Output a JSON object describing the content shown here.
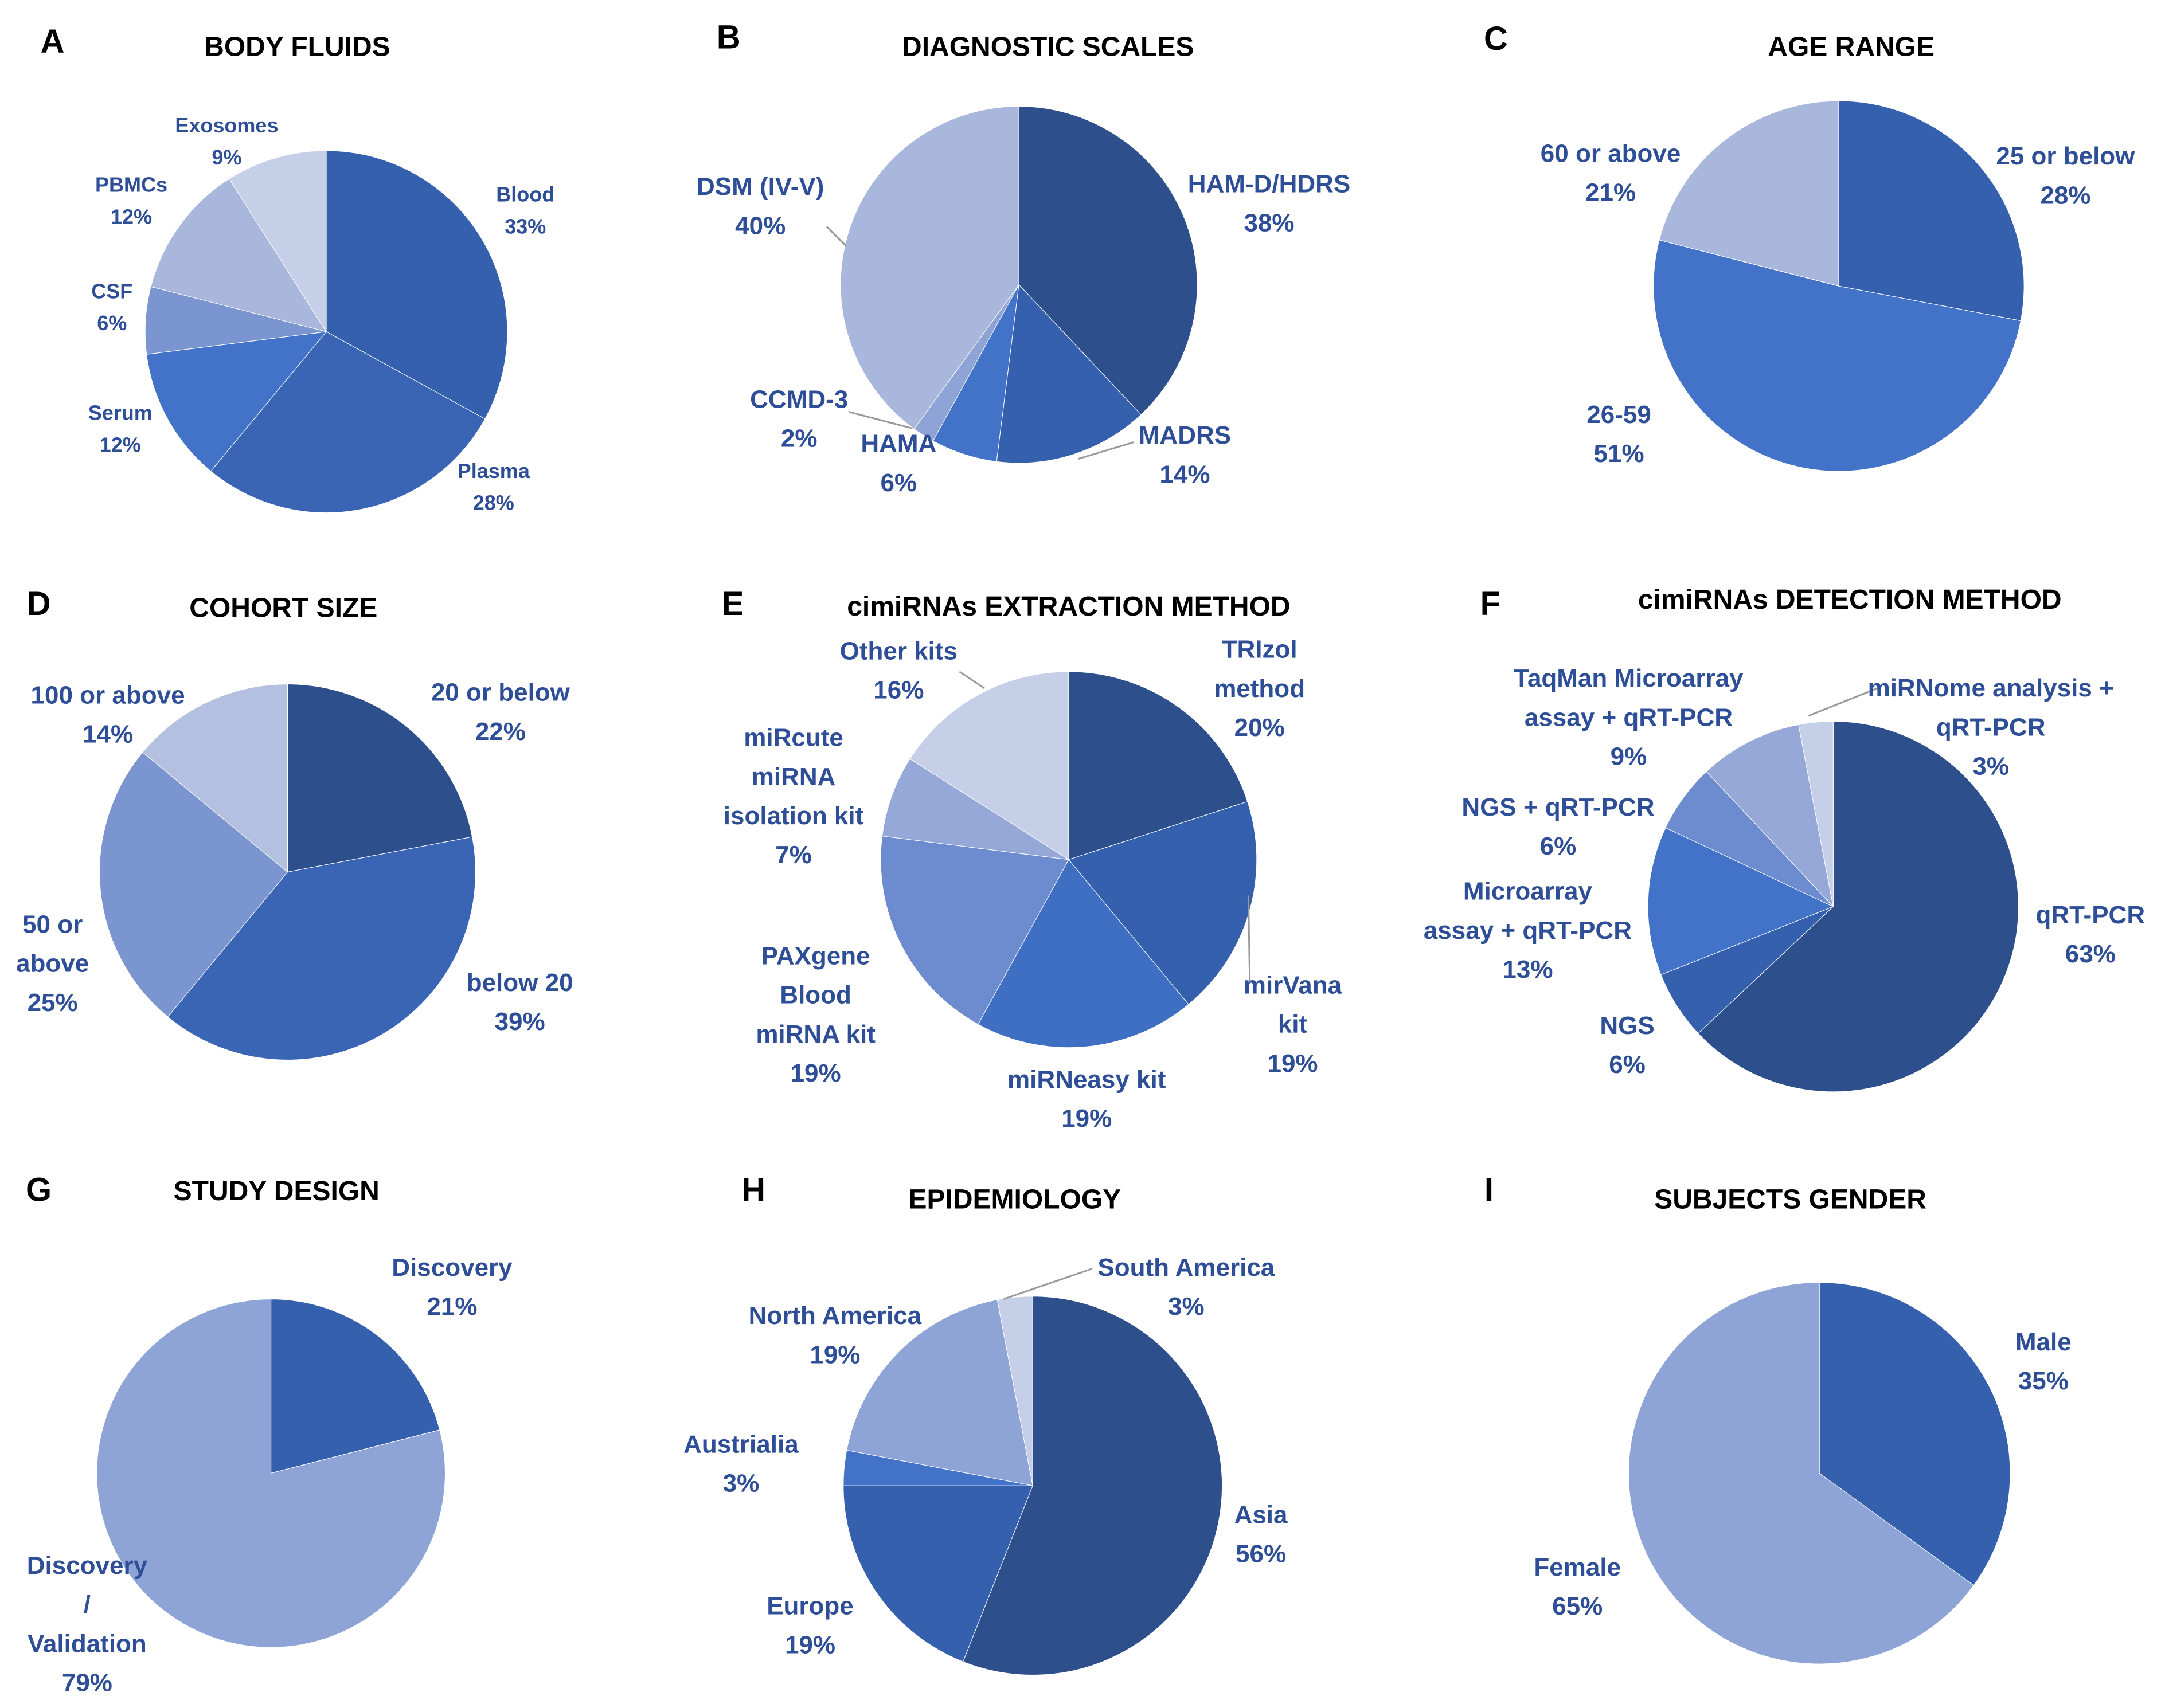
{
  "colors": {
    "c1": "#2d4f8c",
    "c2": "#3560ad",
    "c3": "#4373c8",
    "c4": "#6c8ccf",
    "c5": "#95a8d8",
    "c6": "#a9b7dc",
    "c7": "#c6cfe8",
    "label": "#2e4f97",
    "title": "#000000"
  },
  "chart_data": [
    {
      "id": "A",
      "type": "pie",
      "title": "BODY FLUIDS",
      "slices": [
        {
          "name": "Blood",
          "value": 33,
          "label": "33%",
          "color": "#3560ad"
        },
        {
          "name": "Plasma",
          "value": 28,
          "label": "28%",
          "color": "#3a65b5"
        },
        {
          "name": "Serum",
          "value": 12,
          "label": "12%",
          "color": "#4373c8"
        },
        {
          "name": "CSF",
          "value": 6,
          "label": "6%",
          "color": "#7a95d0"
        },
        {
          "name": "PBMCs",
          "value": 12,
          "label": "12%",
          "color": "#a9b7dc"
        },
        {
          "name": "Exosomes",
          "value": 9,
          "label": "9%",
          "color": "#c6cfe8"
        }
      ]
    },
    {
      "id": "B",
      "type": "pie",
      "title": "DIAGNOSTIC SCALES",
      "slices": [
        {
          "name": "HAM-D/HDRS",
          "value": 38,
          "label": "38%",
          "color": "#2d4f8c"
        },
        {
          "name": "MADRS",
          "value": 14,
          "label": "14%",
          "color": "#3560ad"
        },
        {
          "name": "HAMA",
          "value": 6,
          "label": "6%",
          "color": "#4373c8"
        },
        {
          "name": "CCMD-3",
          "value": 2,
          "label": "2%",
          "color": "#8ea3d6"
        },
        {
          "name": "DSM (IV-V)",
          "value": 40,
          "label": "40%",
          "color": "#a9b7dc"
        }
      ]
    },
    {
      "id": "C",
      "type": "pie",
      "title": "AGE RANGE",
      "slices": [
        {
          "name": "25 or below",
          "value": 28,
          "label": "28%",
          "color": "#3560ad"
        },
        {
          "name": "26-59",
          "value": 51,
          "label": "51%",
          "color": "#4373c8"
        },
        {
          "name": "60 or above",
          "value": 21,
          "label": "21%",
          "color": "#a9b7dc"
        }
      ]
    },
    {
      "id": "D",
      "type": "pie",
      "title": "COHORT SIZE",
      "slices": [
        {
          "name": "20 or below",
          "value": 22,
          "label": "22%",
          "color": "#2d4f8c"
        },
        {
          "name": "below 20",
          "value": 39,
          "label": "39%",
          "color": "#3a65b5"
        },
        {
          "name": "50 or above",
          "value": 25,
          "label": "25%",
          "color": "#7a95d0"
        },
        {
          "name": "100 or above",
          "value": 14,
          "label": "14%",
          "color": "#b3c0e0"
        }
      ]
    },
    {
      "id": "E",
      "type": "pie",
      "title": "cimiRNAs EXTRACTION METHOD",
      "slices": [
        {
          "name": "TRIzol method",
          "value": 20,
          "label": "20%",
          "color": "#2d4f8c"
        },
        {
          "name": "mirVana kit",
          "value": 19,
          "label": "19%",
          "color": "#3560ad"
        },
        {
          "name": "miRNeasy kit",
          "value": 19,
          "label": "19%",
          "color": "#3f6fc3"
        },
        {
          "name": "PAXgene Blood miRNA kit",
          "value": 19,
          "label": "19%",
          "color": "#6c8ccf"
        },
        {
          "name": "miRcute miRNA isolation kit",
          "value": 7,
          "label": "7%",
          "color": "#95a8d8"
        },
        {
          "name": "Other kits",
          "value": 16,
          "label": "16%",
          "color": "#c6cfe8"
        }
      ]
    },
    {
      "id": "F",
      "type": "pie",
      "title": "cimiRNAs DETECTION METHOD",
      "slices": [
        {
          "name": "qRT-PCR",
          "value": 63,
          "label": "63%",
          "color": "#2d4f8c"
        },
        {
          "name": "NGS",
          "value": 6,
          "label": "6%",
          "color": "#3560ad"
        },
        {
          "name": "Microarray assay + qRT-PCR",
          "value": 13,
          "label": "13%",
          "color": "#4373c8"
        },
        {
          "name": "NGS + qRT-PCR",
          "value": 6,
          "label": "6%",
          "color": "#6c8ccf"
        },
        {
          "name": "TaqMan Microarray assay + qRT-PCR",
          "value": 9,
          "label": "9%",
          "color": "#95a8d8"
        },
        {
          "name": "miRNome analysis + qRT-PCR",
          "value": 3,
          "label": "3%",
          "color": "#c6cfe8"
        }
      ]
    },
    {
      "id": "G",
      "type": "pie",
      "title": "STUDY DESIGN",
      "slices": [
        {
          "name": "Discovery",
          "value": 21,
          "label": "21%",
          "color": "#3560ad"
        },
        {
          "name": "Discovery / Validation",
          "value": 79,
          "label": "79%",
          "color": "#8ea3d6"
        }
      ]
    },
    {
      "id": "H",
      "type": "pie",
      "title": "EPIDEMIOLOGY",
      "slices": [
        {
          "name": "Asia",
          "value": 56,
          "label": "56%",
          "color": "#2d4f8c"
        },
        {
          "name": "Europe",
          "value": 19,
          "label": "19%",
          "color": "#3560ad"
        },
        {
          "name": "Austrialia",
          "value": 3,
          "label": "3%",
          "color": "#4373c8"
        },
        {
          "name": "North America",
          "value": 19,
          "label": "19%",
          "color": "#8ea3d6"
        },
        {
          "name": "South America",
          "value": 3,
          "label": "3%",
          "color": "#c6cfe8"
        }
      ]
    },
    {
      "id": "I",
      "type": "pie",
      "title": "SUBJECTS GENDER",
      "slices": [
        {
          "name": "Male",
          "value": 35,
          "label": "35%",
          "color": "#3560ad"
        },
        {
          "name": "Female",
          "value": 65,
          "label": "65%",
          "color": "#8ea3d6"
        }
      ]
    }
  ]
}
